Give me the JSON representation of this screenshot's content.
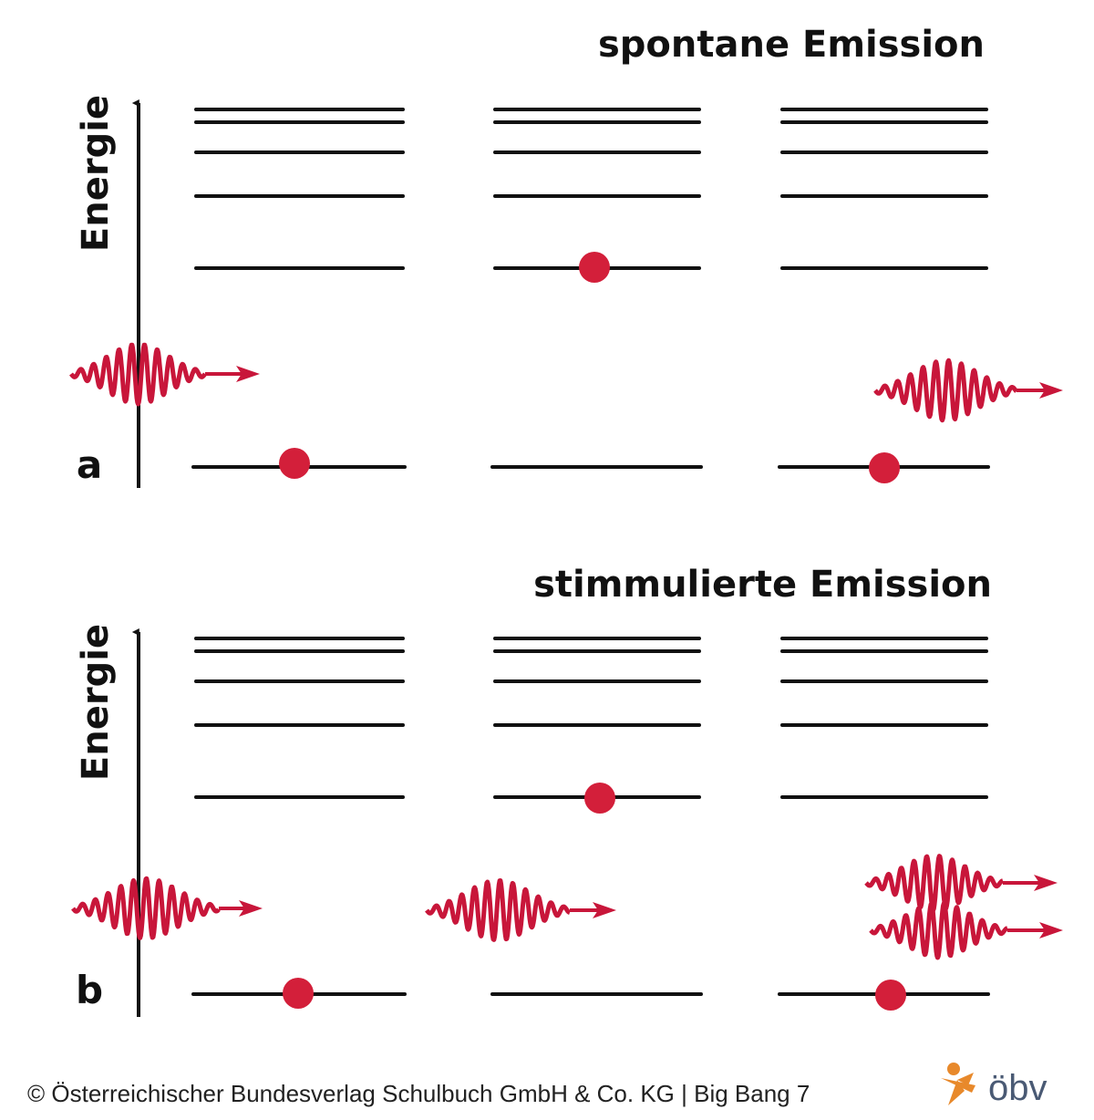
{
  "panels": [
    {
      "title": "spontane Emission",
      "axis_label": "Energie",
      "letter": "a"
    },
    {
      "title": "stimmulierte Emission",
      "axis_label": "Energie",
      "letter": "b"
    }
  ],
  "footer": {
    "copyright": "© Österreichischer Bundesverlag Schulbuch GmbH & Co. KG |  Big Bang 7",
    "logo": "öbv"
  }
}
